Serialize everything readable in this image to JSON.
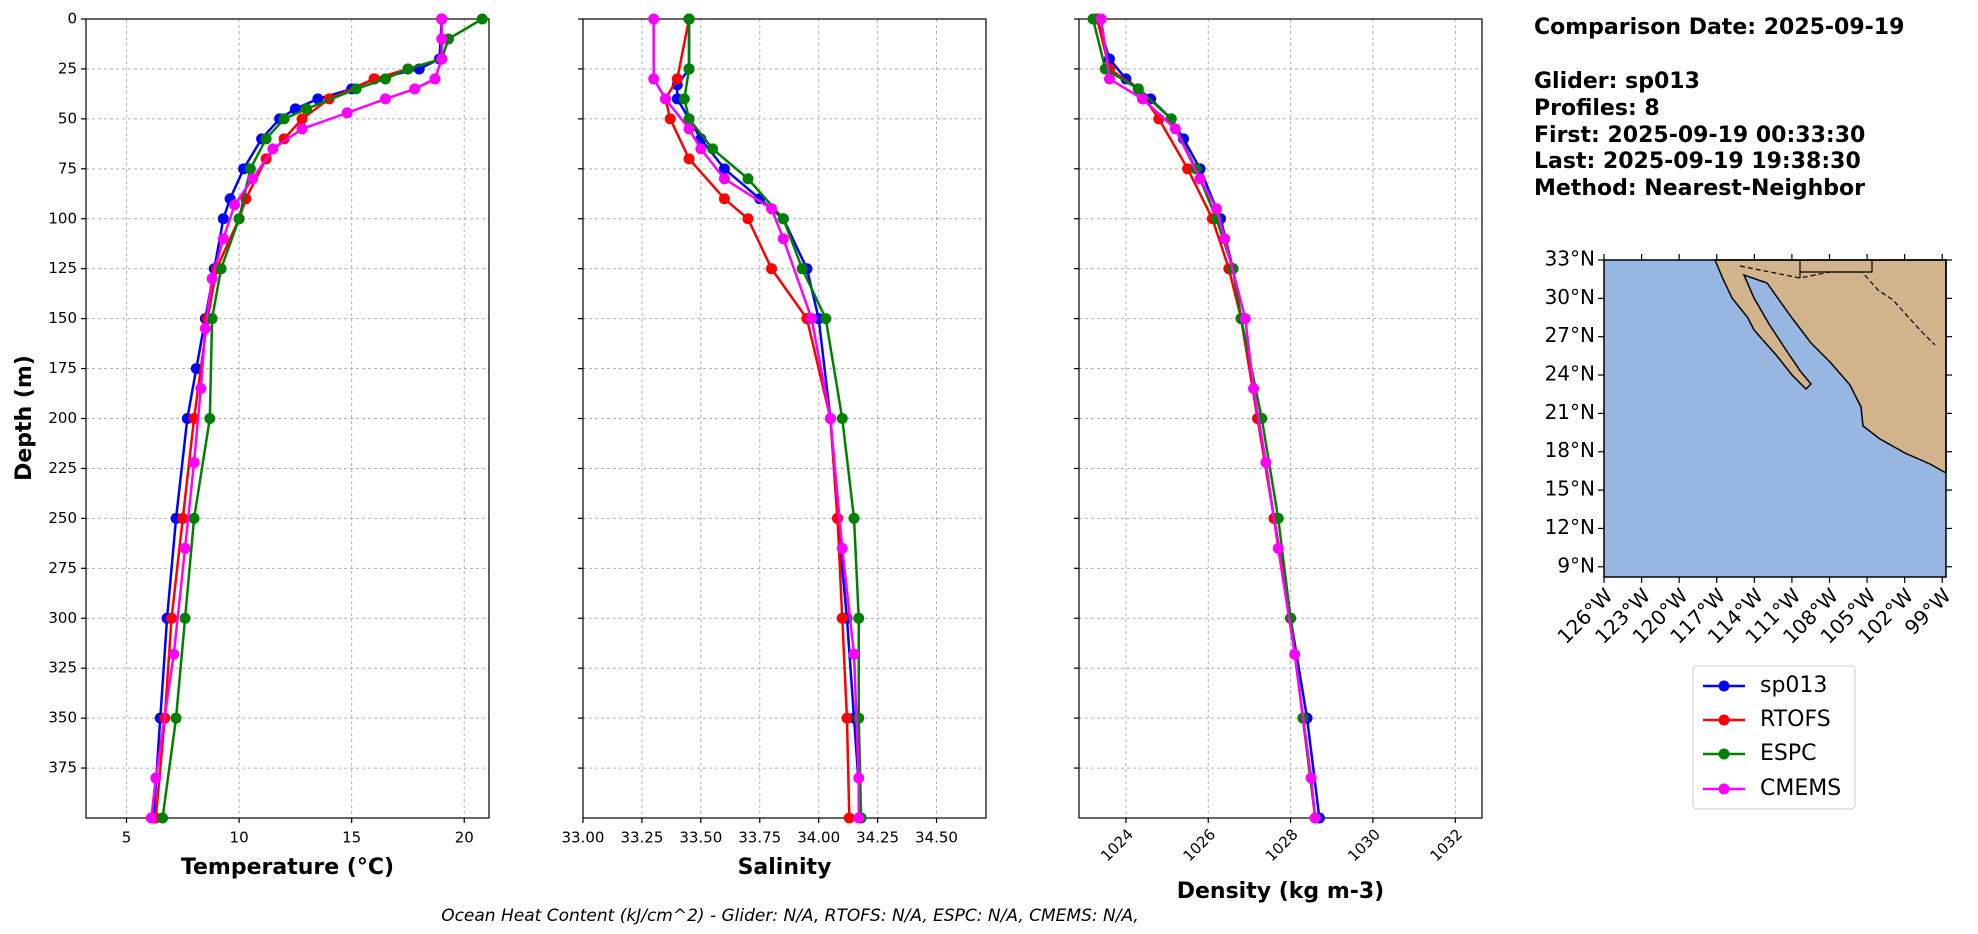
{
  "chart_data": [
    {
      "type": "line",
      "x_label": "Temperature (°C)",
      "y_label": "Depth (m)",
      "xlim": [
        3.2,
        21.1
      ],
      "xticks": [
        5,
        10,
        15,
        20
      ],
      "ylim": [
        400,
        0
      ],
      "yticks": [
        0,
        25,
        50,
        75,
        100,
        125,
        150,
        175,
        200,
        225,
        250,
        275,
        300,
        325,
        350,
        375
      ],
      "grid": true,
      "series": [
        {
          "name": "sp013",
          "color": "#0000ff",
          "y": [
            0,
            20,
            25,
            30,
            35,
            40,
            45,
            50,
            60,
            75,
            90,
            100,
            125,
            150,
            175,
            200,
            250,
            300,
            350,
            400
          ],
          "x": [
            19,
            18.9,
            18,
            16,
            15,
            13.5,
            12.5,
            11.8,
            11,
            10.2,
            9.6,
            9.3,
            8.9,
            8.5,
            8.1,
            7.7,
            7.2,
            6.8,
            6.5,
            6.2
          ]
        },
        {
          "name": "RTOFS",
          "color": "#ff0000",
          "y": [
            0,
            20,
            25,
            30,
            40,
            50,
            60,
            70,
            90,
            100,
            125,
            150,
            200,
            250,
            300,
            350,
            400
          ],
          "x": [
            19,
            19,
            17.5,
            16,
            14,
            12.8,
            12,
            11.2,
            10.3,
            10,
            9,
            8.6,
            8,
            7.5,
            7,
            6.7,
            6.3
          ]
        },
        {
          "name": "ESPC",
          "color": "#008000",
          "y": [
            0,
            10,
            20,
            25,
            30,
            35,
            45,
            50,
            60,
            75,
            100,
            125,
            150,
            200,
            250,
            300,
            350,
            400
          ],
          "x": [
            20.8,
            19.3,
            19,
            17.5,
            16.5,
            15.2,
            13,
            12,
            11.2,
            10.5,
            10,
            9.2,
            8.8,
            8.7,
            8,
            7.6,
            7.2,
            6.6
          ]
        },
        {
          "name": "CMEMS",
          "color": "#ff00ff",
          "y": [
            0,
            10,
            20,
            30,
            35,
            40,
            47,
            55,
            65,
            80,
            93,
            110,
            130,
            155,
            185,
            222,
            265,
            318,
            380,
            400
          ],
          "x": [
            19,
            19,
            19,
            18.7,
            17.8,
            16.5,
            14.8,
            12.8,
            11.5,
            10.6,
            9.8,
            9.3,
            8.8,
            8.5,
            8.3,
            8.0,
            7.6,
            7.1,
            6.3,
            6.1
          ]
        }
      ]
    },
    {
      "type": "line",
      "x_label": "Salinity",
      "xlim": [
        33.0,
        34.71
      ],
      "xticks": [
        {
          "value": 33.0,
          "label": "33.00"
        },
        {
          "value": 33.25,
          "label": "33.25"
        },
        {
          "value": 33.5,
          "label": "33.50"
        },
        {
          "value": 33.75,
          "label": "33.75"
        },
        {
          "value": 34.0,
          "label": "34.00"
        },
        {
          "value": 34.25,
          "label": "34.25"
        },
        {
          "value": 34.5,
          "label": "34.50"
        }
      ],
      "ylim": [
        400,
        0
      ],
      "yticks": [
        0,
        25,
        50,
        75,
        100,
        125,
        150,
        175,
        200,
        225,
        250,
        275,
        300,
        325,
        350,
        375
      ],
      "grid": true,
      "series": [
        {
          "name": "sp013",
          "color": "#0000ff",
          "y": [
            0,
            25,
            33,
            40,
            50,
            60,
            75,
            90,
            100,
            125,
            150,
            200,
            250,
            300,
            350,
            400
          ],
          "x": [
            33.45,
            33.45,
            33.4,
            33.4,
            33.45,
            33.5,
            33.6,
            33.75,
            33.85,
            33.95,
            34.0,
            34.05,
            34.08,
            34.12,
            34.15,
            34.18
          ]
        },
        {
          "name": "RTOFS",
          "color": "#ff0000",
          "y": [
            0,
            30,
            40,
            50,
            70,
            90,
            100,
            125,
            150,
            200,
            250,
            300,
            350,
            400
          ],
          "x": [
            33.45,
            33.4,
            33.35,
            33.37,
            33.45,
            33.6,
            33.7,
            33.8,
            33.95,
            34.05,
            34.08,
            34.1,
            34.12,
            34.13
          ]
        },
        {
          "name": "ESPC",
          "color": "#008000",
          "y": [
            0,
            25,
            40,
            50,
            65,
            80,
            100,
            125,
            150,
            200,
            250,
            300,
            350,
            400
          ],
          "x": [
            33.45,
            33.45,
            33.43,
            33.45,
            33.55,
            33.7,
            33.85,
            33.93,
            34.03,
            34.1,
            34.15,
            34.17,
            34.17,
            34.18
          ]
        },
        {
          "name": "CMEMS",
          "color": "#ff00ff",
          "y": [
            0,
            30,
            40,
            55,
            65,
            80,
            95,
            110,
            150,
            200,
            265,
            318,
            380,
            400
          ],
          "x": [
            33.3,
            33.3,
            33.35,
            33.45,
            33.5,
            33.6,
            33.8,
            33.85,
            33.97,
            34.05,
            34.1,
            34.15,
            34.17,
            34.17
          ]
        }
      ]
    },
    {
      "type": "line",
      "x_label": "Density (kg m-3)",
      "xlim": [
        1022.86,
        1032.65
      ],
      "xticks": [
        1024,
        1026,
        1028,
        1030,
        1032
      ],
      "ylim": [
        400,
        0
      ],
      "yticks": [
        0,
        25,
        50,
        75,
        100,
        125,
        150,
        175,
        200,
        225,
        250,
        275,
        300,
        325,
        350,
        375
      ],
      "grid": true,
      "series": [
        {
          "name": "sp013",
          "color": "#0000ff",
          "y": [
            0,
            20,
            30,
            40,
            50,
            60,
            75,
            100,
            125,
            150,
            200,
            250,
            300,
            350,
            400
          ],
          "x": [
            1023.3,
            1023.6,
            1024,
            1024.6,
            1025.1,
            1025.4,
            1025.8,
            1026.3,
            1026.6,
            1026.8,
            1027.2,
            1027.6,
            1028.0,
            1028.4,
            1028.7
          ]
        },
        {
          "name": "RTOFS",
          "color": "#ff0000",
          "y": [
            0,
            25,
            35,
            50,
            75,
            100,
            125,
            150,
            200,
            250,
            300,
            350,
            400
          ],
          "x": [
            1023.3,
            1023.6,
            1024.3,
            1024.8,
            1025.5,
            1026.1,
            1026.5,
            1026.8,
            1027.2,
            1027.6,
            1028.0,
            1028.3,
            1028.6
          ]
        },
        {
          "name": "ESPC",
          "color": "#008000",
          "y": [
            0,
            25,
            35,
            50,
            75,
            100,
            125,
            150,
            200,
            250,
            300,
            350,
            400
          ],
          "x": [
            1023.2,
            1023.5,
            1024.3,
            1025.1,
            1025.7,
            1026.2,
            1026.6,
            1026.8,
            1027.3,
            1027.7,
            1028.0,
            1028.3,
            1028.6
          ]
        },
        {
          "name": "CMEMS",
          "color": "#ff00ff",
          "y": [
            0,
            30,
            40,
            55,
            80,
            95,
            110,
            150,
            185,
            222,
            265,
            318,
            380,
            400
          ],
          "x": [
            1023.4,
            1023.6,
            1024.4,
            1025.2,
            1025.8,
            1026.2,
            1026.4,
            1026.9,
            1027.1,
            1027.4,
            1027.7,
            1028.1,
            1028.5,
            1028.6
          ]
        }
      ]
    }
  ],
  "info": [
    "Comparison Date: 2025-09-19",
    "Glider: sp013",
    "Profiles: 8",
    "First: 2025-09-19 00:33:30",
    "Last: 2025-09-19 19:38:30",
    "Method: Nearest-Neighbor"
  ],
  "map": {
    "xlim": [
      -126,
      -98.7
    ],
    "ylim": [
      8.2,
      33
    ],
    "yticks": [
      {
        "value": 33,
        "label": "33°N"
      },
      {
        "value": 30,
        "label": "30°N"
      },
      {
        "value": 27,
        "label": "27°N"
      },
      {
        "value": 24,
        "label": "24°N"
      },
      {
        "value": 21,
        "label": "21°N"
      },
      {
        "value": 18,
        "label": "18°N"
      },
      {
        "value": 15,
        "label": "15°N"
      },
      {
        "value": 12,
        "label": "12°N"
      },
      {
        "value": 9,
        "label": "9°N"
      }
    ],
    "xticks": [
      {
        "value": -126,
        "label": "126°W"
      },
      {
        "value": -123,
        "label": "123°W"
      },
      {
        "value": -120,
        "label": "120°W"
      },
      {
        "value": -117,
        "label": "117°W"
      },
      {
        "value": -114,
        "label": "114°W"
      },
      {
        "value": -111,
        "label": "111°W"
      },
      {
        "value": -108,
        "label": "108°W"
      },
      {
        "value": -105,
        "label": "105°W"
      },
      {
        "value": -102,
        "label": "102°W"
      },
      {
        "value": -99,
        "label": "99°W"
      }
    ]
  },
  "footer": "Ocean Heat Content (kJ/cm^2) - Glider: N/A,  RTOFS: N/A,  ESPC: N/A,  CMEMS: N/A,"
}
